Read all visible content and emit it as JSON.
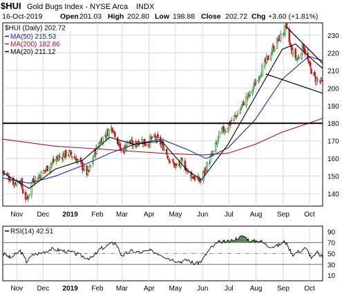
{
  "header": {
    "symbol": "$HUI",
    "name": "Gold Bugs Index - NYSE Arca",
    "exchange": "INDX",
    "date": "16-Oct-2019",
    "open_label": "Open",
    "open": "201.03",
    "high_label": "High",
    "high": "202.80",
    "low_label": "Low",
    "low": "198.88",
    "close_label": "Close",
    "close": "202.72",
    "chg_label": "Chg",
    "chg": "+3.60 (+1.81%)"
  },
  "chart_data": [
    {
      "type": "candlestick",
      "legend_title": "$HUI (Daily) 202.72",
      "legend": [
        {
          "label": "MA(50) 215.53",
          "color": "#1f2a8c"
        },
        {
          "label": "MA(200) 182.86",
          "color": "#9a1a2a"
        },
        {
          "label": "MA(20) 211.12",
          "color": "#000000"
        }
      ],
      "ylim": [
        133,
        237
      ],
      "yticks": [
        140,
        150,
        160,
        170,
        180,
        190,
        200,
        210,
        220,
        230
      ],
      "x_months": [
        "Nov",
        "Dec",
        "2019",
        "Feb",
        "Mar",
        "Apr",
        "May",
        "Jun",
        "Jul",
        "Aug",
        "Sep",
        "Oct"
      ],
      "x_range": [
        "2018-10-16",
        "2019-10-16"
      ],
      "close_series": [
        [
          "2018-10-16",
          153
        ],
        [
          "2018-10-22",
          150
        ],
        [
          "2018-10-29",
          146
        ],
        [
          "2018-11-05",
          148
        ],
        [
          "2018-11-09",
          139
        ],
        [
          "2018-11-13",
          137
        ],
        [
          "2018-11-19",
          148
        ],
        [
          "2018-11-26",
          150
        ],
        [
          "2018-12-03",
          153
        ],
        [
          "2018-12-10",
          157
        ],
        [
          "2018-12-17",
          160
        ],
        [
          "2018-12-24",
          162
        ],
        [
          "2018-12-31",
          163
        ],
        [
          "2019-01-07",
          160
        ],
        [
          "2019-01-14",
          156
        ],
        [
          "2019-01-21",
          151
        ],
        [
          "2019-01-28",
          162
        ],
        [
          "2019-02-04",
          170
        ],
        [
          "2019-02-11",
          174
        ],
        [
          "2019-02-18",
          178
        ],
        [
          "2019-02-22",
          173
        ],
        [
          "2019-03-01",
          163
        ],
        [
          "2019-03-08",
          170
        ],
        [
          "2019-03-15",
          167
        ],
        [
          "2019-03-22",
          171
        ],
        [
          "2019-03-29",
          168
        ],
        [
          "2019-04-05",
          172
        ],
        [
          "2019-04-12",
          170
        ],
        [
          "2019-04-18",
          166
        ],
        [
          "2019-04-25",
          159
        ],
        [
          "2019-05-02",
          155
        ],
        [
          "2019-05-09",
          158
        ],
        [
          "2019-05-16",
          152
        ],
        [
          "2019-05-23",
          149
        ],
        [
          "2019-05-30",
          147
        ],
        [
          "2019-06-04",
          154
        ],
        [
          "2019-06-10",
          160
        ],
        [
          "2019-06-17",
          168
        ],
        [
          "2019-06-21",
          175
        ],
        [
          "2019-06-28",
          177
        ],
        [
          "2019-07-05",
          182
        ],
        [
          "2019-07-12",
          186
        ],
        [
          "2019-07-19",
          193
        ],
        [
          "2019-07-26",
          197
        ],
        [
          "2019-08-02",
          205
        ],
        [
          "2019-08-09",
          212
        ],
        [
          "2019-08-16",
          218
        ],
        [
          "2019-08-23",
          225
        ],
        [
          "2019-08-30",
          230
        ],
        [
          "2019-09-04",
          234
        ],
        [
          "2019-09-10",
          222
        ],
        [
          "2019-09-17",
          216
        ],
        [
          "2019-09-24",
          224
        ],
        [
          "2019-10-01",
          212
        ],
        [
          "2019-10-08",
          205
        ],
        [
          "2019-10-16",
          202.72
        ]
      ],
      "ma50_series": [
        [
          "2018-10-16",
          149
        ],
        [
          "2018-11-15",
          146
        ],
        [
          "2018-12-15",
          150
        ],
        [
          "2019-01-15",
          156
        ],
        [
          "2019-02-15",
          163
        ],
        [
          "2019-03-15",
          168
        ],
        [
          "2019-04-15",
          171
        ],
        [
          "2019-05-15",
          165
        ],
        [
          "2019-06-05",
          160
        ],
        [
          "2019-06-30",
          166
        ],
        [
          "2019-07-31",
          182
        ],
        [
          "2019-08-31",
          205
        ],
        [
          "2019-09-30",
          218
        ],
        [
          "2019-10-16",
          215.53
        ]
      ],
      "ma200_series": [
        [
          "2018-10-16",
          171
        ],
        [
          "2018-12-15",
          167
        ],
        [
          "2019-02-15",
          165
        ],
        [
          "2019-04-15",
          163
        ],
        [
          "2019-06-01",
          162
        ],
        [
          "2019-06-30",
          163
        ],
        [
          "2019-07-31",
          168
        ],
        [
          "2019-08-31",
          175
        ],
        [
          "2019-09-30",
          180
        ],
        [
          "2019-10-16",
          182.86
        ]
      ],
      "ma20_series": [
        [
          "2018-10-16",
          152
        ],
        [
          "2018-11-15",
          143
        ],
        [
          "2018-12-15",
          154
        ],
        [
          "2019-01-15",
          159
        ],
        [
          "2019-02-15",
          172
        ],
        [
          "2019-03-15",
          168
        ],
        [
          "2019-04-15",
          170
        ],
        [
          "2019-05-15",
          153
        ],
        [
          "2019-05-31",
          148
        ],
        [
          "2019-06-30",
          168
        ],
        [
          "2019-07-31",
          195
        ],
        [
          "2019-08-31",
          222
        ],
        [
          "2019-09-15",
          225
        ],
        [
          "2019-09-30",
          218
        ],
        [
          "2019-10-16",
          211.12
        ]
      ],
      "horizontal_lines": [
        180
      ],
      "trendlines": [
        {
          "from": [
            "2019-09-04",
            235
          ],
          "to": [
            "2019-10-16",
            214
          ]
        },
        {
          "from": [
            "2019-08-12",
            208
          ],
          "to": [
            "2019-10-16",
            197
          ]
        }
      ]
    },
    {
      "type": "line",
      "legend_title": "RSI(14) 42.51",
      "ylim": [
        0,
        100
      ],
      "yticks": [
        10,
        30,
        50,
        70,
        90
      ],
      "reference_lines": [
        30,
        50,
        70
      ],
      "x_months": [
        "Nov",
        "Dec",
        "2019",
        "Feb",
        "Mar",
        "Apr",
        "May",
        "Jun",
        "Jul",
        "Aug",
        "Sep",
        "Oct"
      ],
      "series": [
        [
          "2018-10-16",
          50
        ],
        [
          "2018-10-25",
          42
        ],
        [
          "2018-11-05",
          55
        ],
        [
          "2018-11-12",
          35
        ],
        [
          "2018-11-20",
          48
        ],
        [
          "2018-12-01",
          52
        ],
        [
          "2018-12-10",
          58
        ],
        [
          "2018-12-20",
          56
        ],
        [
          "2019-01-02",
          52
        ],
        [
          "2019-01-15",
          45
        ],
        [
          "2019-01-25",
          40
        ],
        [
          "2019-02-04",
          58
        ],
        [
          "2019-02-14",
          66
        ],
        [
          "2019-02-22",
          70
        ],
        [
          "2019-03-01",
          45
        ],
        [
          "2019-03-11",
          55
        ],
        [
          "2019-03-22",
          52
        ],
        [
          "2019-04-02",
          55
        ],
        [
          "2019-04-12",
          50
        ],
        [
          "2019-04-25",
          40
        ],
        [
          "2019-05-06",
          35
        ],
        [
          "2019-05-16",
          38
        ],
        [
          "2019-05-24",
          30
        ],
        [
          "2019-05-31",
          37
        ],
        [
          "2019-06-10",
          60
        ],
        [
          "2019-06-21",
          72
        ],
        [
          "2019-07-01",
          71
        ],
        [
          "2019-07-10",
          78
        ],
        [
          "2019-07-18",
          82
        ],
        [
          "2019-07-26",
          72
        ],
        [
          "2019-08-05",
          74
        ],
        [
          "2019-08-14",
          65
        ],
        [
          "2019-08-23",
          62
        ],
        [
          "2019-09-03",
          72
        ],
        [
          "2019-09-12",
          48
        ],
        [
          "2019-09-20",
          55
        ],
        [
          "2019-09-27",
          60
        ],
        [
          "2019-10-04",
          40
        ],
        [
          "2019-10-10",
          52
        ],
        [
          "2019-10-16",
          42.51
        ]
      ]
    }
  ]
}
